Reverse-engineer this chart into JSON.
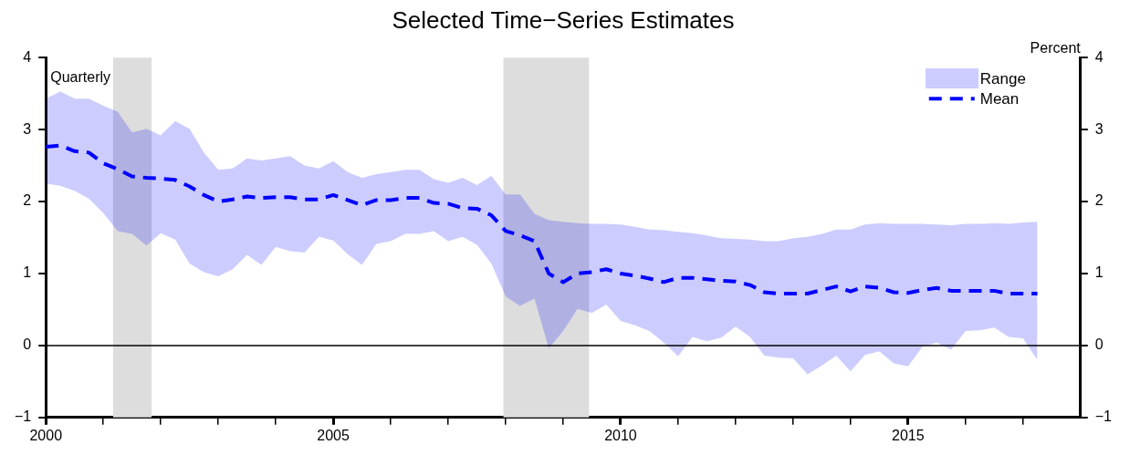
{
  "chart_data": {
    "type": "line",
    "title": "Selected Time−Series Estimates",
    "y2label": "Percent",
    "annotations": [
      "Quarterly",
      "Range"
    ],
    "x": [
      2000,
      2000.25,
      2000.5,
      2000.75,
      2001,
      2001.25,
      2001.5,
      2001.75,
      2002,
      2002.25,
      2002.5,
      2002.75,
      2003,
      2003.25,
      2003.5,
      2003.75,
      2004,
      2004.25,
      2004.5,
      2004.75,
      2005,
      2005.25,
      2005.5,
      2005.75,
      2006,
      2006.25,
      2006.5,
      2006.75,
      2007,
      2007.25,
      2007.5,
      2007.75,
      2008,
      2008.25,
      2008.5,
      2008.75,
      2009,
      2009.25,
      2009.5,
      2009.75,
      2010,
      2010.25,
      2010.5,
      2010.75,
      2011,
      2011.25,
      2011.5,
      2011.75,
      2012,
      2012.25,
      2012.5,
      2012.75,
      2013,
      2013.25,
      2013.5,
      2013.75,
      2014,
      2014.25,
      2014.5,
      2014.75,
      2015,
      2015.25,
      2015.5,
      2015.75,
      2016,
      2016.25,
      2016.5,
      2016.75,
      2017,
      2017.25
    ],
    "series": [
      {
        "name": "Mean",
        "color": "#0000ff",
        "line_style": "dashed",
        "values": [
          2.76,
          2.78,
          2.7,
          2.68,
          2.53,
          2.45,
          2.35,
          2.33,
          2.32,
          2.3,
          2.21,
          2.09,
          2.0,
          2.03,
          2.07,
          2.05,
          2.06,
          2.06,
          2.03,
          2.03,
          2.09,
          2.02,
          1.95,
          2.02,
          2.02,
          2.05,
          2.05,
          1.98,
          1.97,
          1.91,
          1.9,
          1.81,
          1.59,
          1.53,
          1.45,
          1.0,
          0.88,
          1.0,
          1.02,
          1.06,
          1.0,
          0.97,
          0.93,
          0.88,
          0.94,
          0.94,
          0.92,
          0.9,
          0.89,
          0.84,
          0.74,
          0.72,
          0.72,
          0.72,
          0.77,
          0.82,
          0.75,
          0.82,
          0.8,
          0.74,
          0.73,
          0.77,
          0.8,
          0.76,
          0.76,
          0.76,
          0.76,
          0.72,
          0.72,
          0.72
        ],
        "lower": [
          2.25,
          2.22,
          2.15,
          2.04,
          1.84,
          1.59,
          1.55,
          1.39,
          1.56,
          1.47,
          1.14,
          1.02,
          0.96,
          1.06,
          1.26,
          1.12,
          1.37,
          1.31,
          1.29,
          1.51,
          1.46,
          1.27,
          1.12,
          1.41,
          1.45,
          1.55,
          1.55,
          1.59,
          1.45,
          1.51,
          1.4,
          1.14,
          0.68,
          0.55,
          0.65,
          -0.04,
          0.2,
          0.51,
          0.45,
          0.57,
          0.34,
          0.28,
          0.2,
          0.04,
          -0.15,
          0.12,
          0.06,
          0.11,
          0.26,
          0.12,
          -0.14,
          -0.17,
          -0.18,
          -0.4,
          -0.28,
          -0.14,
          -0.36,
          -0.13,
          -0.08,
          -0.25,
          -0.29,
          -0.02,
          0.04,
          -0.06,
          0.2,
          0.21,
          0.25,
          0.12,
          0.1,
          -0.2
        ],
        "upper": [
          3.43,
          3.53,
          3.43,
          3.43,
          3.33,
          3.25,
          2.96,
          3.01,
          2.92,
          3.12,
          3.01,
          2.68,
          2.44,
          2.46,
          2.6,
          2.57,
          2.6,
          2.63,
          2.5,
          2.46,
          2.56,
          2.41,
          2.33,
          2.38,
          2.41,
          2.44,
          2.44,
          2.31,
          2.26,
          2.33,
          2.23,
          2.36,
          2.1,
          2.1,
          1.83,
          1.74,
          1.72,
          1.7,
          1.69,
          1.69,
          1.68,
          1.65,
          1.61,
          1.6,
          1.58,
          1.56,
          1.53,
          1.49,
          1.48,
          1.47,
          1.45,
          1.45,
          1.49,
          1.51,
          1.55,
          1.61,
          1.61,
          1.68,
          1.7,
          1.69,
          1.69,
          1.69,
          1.68,
          1.67,
          1.69,
          1.69,
          1.7,
          1.69,
          1.71,
          1.72
        ]
      }
    ],
    "xlim": [
      2000,
      2018
    ],
    "xticks": [
      {
        "value": 2000,
        "label": "2000"
      },
      {
        "value": 2001,
        "label": null
      },
      {
        "value": 2002,
        "label": null
      },
      {
        "value": 2003,
        "label": null
      },
      {
        "value": 2004,
        "label": null
      },
      {
        "value": 2005,
        "label": "2005"
      },
      {
        "value": 2006,
        "label": null
      },
      {
        "value": 2007,
        "label": null
      },
      {
        "value": 2008,
        "label": null
      },
      {
        "value": 2009,
        "label": null
      },
      {
        "value": 2010,
        "label": "2010"
      },
      {
        "value": 2011,
        "label": null
      },
      {
        "value": 2012,
        "label": null
      },
      {
        "value": 2013,
        "label": null
      },
      {
        "value": 2014,
        "label": null
      },
      {
        "value": 2015,
        "label": "2015"
      },
      {
        "value": 2016,
        "label": null
      },
      {
        "value": 2017,
        "label": null
      }
    ],
    "ylim": [
      -1,
      4
    ],
    "yticks": [
      -1,
      0,
      1,
      2,
      3,
      4
    ],
    "y2lim": [
      -1,
      4
    ],
    "y2ticks": [
      -1,
      0,
      1,
      2,
      3,
      4
    ],
    "ref_lines": [
      {
        "axis": "y",
        "value": 0,
        "color": "#000000"
      }
    ],
    "bands": [
      {
        "axis": "x",
        "from": 2001.17,
        "to": 2001.84,
        "color": "#dddddd"
      },
      {
        "axis": "x",
        "from": 2007.96,
        "to": 2009.45,
        "color": "#dddddd"
      }
    ],
    "legend": "top right",
    "grid": false,
    "marker": "none"
  }
}
